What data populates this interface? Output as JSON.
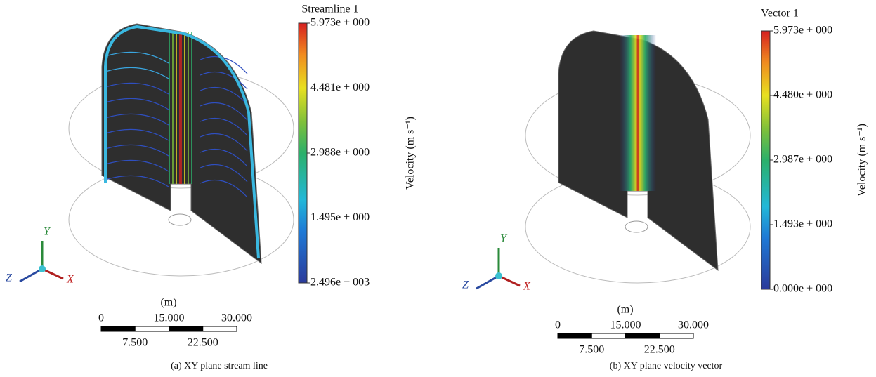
{
  "panels": [
    {
      "colorbar": {
        "title": "Streamline 1",
        "ticks": [
          "5.973e + 000",
          "4.481e + 000",
          "2.988e + 000",
          "1.495e + 000",
          "2.496e − 003"
        ],
        "axis_label": "Velocity (m s⁻¹)"
      },
      "triad": {
        "y": "Y",
        "z": "Z",
        "x": "X"
      },
      "scale_bar": {
        "unit": "(m)",
        "top_labels": [
          "0",
          "15.000",
          "30.000"
        ],
        "bottom_labels": [
          "7.500",
          "22.500"
        ]
      },
      "caption": "(a)  XY plane stream line"
    },
    {
      "colorbar": {
        "title": "Vector 1",
        "ticks": [
          "5.973e + 000",
          "4.480e + 000",
          "2.987e + 000",
          "1.493e + 000",
          "0.000e + 000"
        ],
        "axis_label": "Velocity (m s⁻¹)"
      },
      "triad": {
        "y": "Y",
        "z": "Z",
        "x": "X"
      },
      "scale_bar": {
        "unit": "(m)",
        "top_labels": [
          "0",
          "15.000",
          "30.000"
        ],
        "bottom_labels": [
          "7.500",
          "22.500"
        ]
      },
      "caption": "(b)  XY plane velocity vector"
    }
  ]
}
